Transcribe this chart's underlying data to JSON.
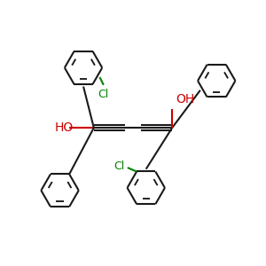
{
  "bg_color": "#ffffff",
  "bond_color": "#1a1a1a",
  "oh_color": "#cc0000",
  "cl_color": "#008000",
  "lw": 1.5,
  "hex_r": 0.72,
  "figsize": [
    3.0,
    3.0
  ],
  "dpi": 100,
  "xlim": [
    0,
    10
  ],
  "ylim": [
    0,
    10
  ]
}
